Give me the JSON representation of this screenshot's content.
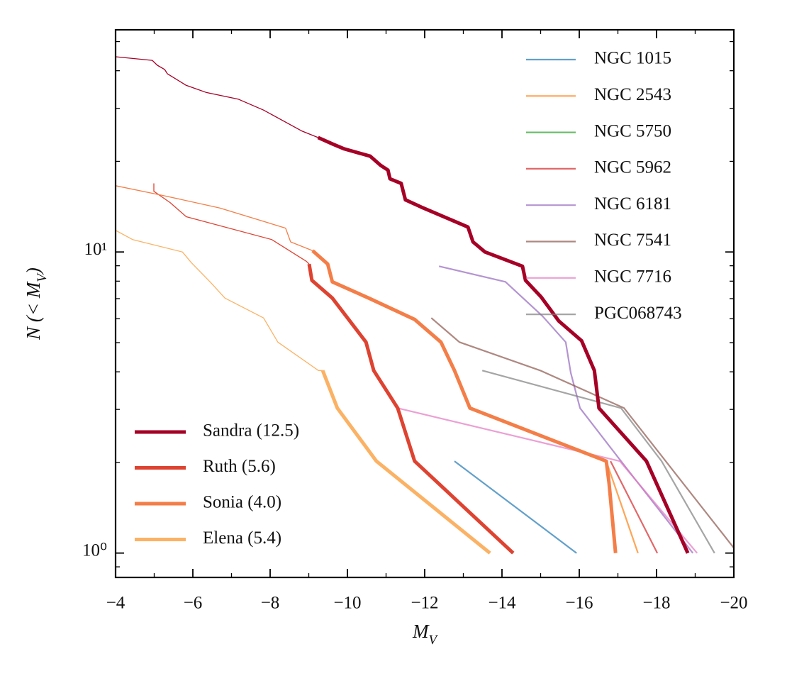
{
  "chart_data": {
    "type": "line",
    "xlabel": "M_V",
    "ylabel": "N (< M_V)",
    "xlim": [
      -4,
      -20
    ],
    "ylim": [
      0.83,
      54.7
    ],
    "yscale": "log",
    "xticks": [
      {
        "value": -4,
        "label": "−4"
      },
      {
        "value": -6,
        "label": "−6"
      },
      {
        "value": -8,
        "label": "−8"
      },
      {
        "value": -10,
        "label": "−10"
      },
      {
        "value": -12,
        "label": "−12"
      },
      {
        "value": -14,
        "label": "−14"
      },
      {
        "value": -16,
        "label": "−16"
      },
      {
        "value": -18,
        "label": "−18"
      },
      {
        "value": -20,
        "label": "−20"
      }
    ],
    "xminorticks": [
      -5,
      -7,
      -9,
      -11,
      -13,
      -15,
      -17,
      -19
    ],
    "yticks": [
      {
        "value": 1,
        "label": "10⁰"
      },
      {
        "value": 10,
        "label": "10¹"
      }
    ],
    "yminorticks": [
      0.9,
      2,
      3,
      4,
      5,
      6,
      7,
      8,
      9,
      20,
      30,
      40,
      50
    ],
    "series": [
      {
        "name": "Sandra (12.5)",
        "color": "#a50026",
        "alpha": 1,
        "legend": "lower left",
        "segments": [
          {
            "linewidth": 1.3,
            "x": [
              -4,
              -4.95,
              -5.08,
              -5.27,
              -5.34,
              -5.82,
              -6.34,
              -7.17,
              -7.83,
              -8.83,
              -9.24
            ],
            "values": [
              44.5,
              43.3,
              41.7,
              40.4,
              39.1,
              35.8,
              33.9,
              32.2,
              29.6,
              25.2,
              24.0
            ]
          },
          {
            "linewidth": 5,
            "x": [
              -9.24,
              -9.63,
              -9.92,
              -10.59,
              -10.86,
              -11.05,
              -11.1,
              -11.39,
              -11.5,
              -11.91,
              -13.12,
              -13.25,
              -13.56,
              -14.53,
              -14.61,
              -15.01,
              -15.47,
              -16.06,
              -16.39,
              -16.51,
              -17.74,
              -18.81
            ],
            "values": [
              24.0,
              22.8,
              22.0,
              20.8,
              19.4,
              18.7,
              17.5,
              16.9,
              14.9,
              14.1,
              12.1,
              10.8,
              10,
              8.97,
              8.05,
              7.1,
              5.9,
              5.07,
              4.04,
              3.03,
              2.02,
              1.0
            ]
          }
        ]
      },
      {
        "name": "Ruth (5.6)",
        "color": "#de4331",
        "alpha": 1,
        "legend": "lower left",
        "segments": [
          {
            "linewidth": 1.3,
            "x": [
              -4.99,
              -4.99,
              -5.41,
              -5.83,
              -8.04,
              -8.94,
              -9.01
            ],
            "values": [
              16.9,
              15.9,
              14.6,
              13.1,
              11.0,
              9.31,
              9.12
            ]
          },
          {
            "linewidth": 5,
            "x": [
              -9.01,
              -9.08,
              -9.61,
              -10.48,
              -10.68,
              -11.3,
              -11.74,
              -14.29
            ],
            "values": [
              9.12,
              8.05,
              7.03,
              5.02,
              4.04,
              3.03,
              2.02,
              1.0
            ]
          }
        ]
      },
      {
        "name": "Sonia (4.0)",
        "color": "#f47e48",
        "alpha": 1,
        "legend": "lower left",
        "segments": [
          {
            "linewidth": 1.3,
            "x": [
              -4,
              -5.23,
              -6.7,
              -8.4,
              -8.53,
              -9.1
            ],
            "values": [
              16.6,
              15.4,
              14.0,
              12.0,
              10.8,
              10.1
            ]
          },
          {
            "linewidth": 5,
            "x": [
              -9.1,
              -9.49,
              -9.61,
              -10.55,
              -11.74,
              -12.42,
              -12.77,
              -13.17,
              -16.7,
              -16.77,
              -16.94
            ],
            "values": [
              10.1,
              9.12,
              7.96,
              7.03,
              5.97,
              5.02,
              4.04,
              3.03,
              2.02,
              1.71,
              1.0
            ]
          }
        ]
      },
      {
        "name": "Elena (5.4)",
        "color": "#fbb264",
        "alpha": 1,
        "legend": "lower left",
        "segments": [
          {
            "linewidth": 1.3,
            "x": [
              -4,
              -4.44,
              -5.73,
              -5.96,
              -6.46,
              -6.83,
              -7.83,
              -8.2,
              -9.25,
              -9.36
            ],
            "values": [
              11.8,
              11.0,
              10.0,
              9.22,
              7.92,
              7.03,
              6.04,
              5.02,
              4.04,
              4.04
            ]
          },
          {
            "linewidth": 5,
            "x": [
              -9.36,
              -9.74,
              -10.75,
              -13.69
            ],
            "values": [
              4.04,
              3.03,
              2.02,
              1.0
            ]
          }
        ]
      },
      {
        "name": "NGC 1015",
        "color": "#1f77b4",
        "alpha": 0.7,
        "legend": "upper right",
        "segments": [
          {
            "linewidth": 2.2,
            "x": [
              -12.77,
              -15.93
            ],
            "values": [
              2.02,
              1.0
            ]
          }
        ]
      },
      {
        "name": "NGC 2543",
        "color": "#ff7f0e",
        "alpha": 0.7,
        "legend": "upper right",
        "segments": [
          {
            "linewidth": 2.2,
            "x": [
              -16.7,
              -17.52
            ],
            "values": [
              2.02,
              1.0
            ]
          }
        ]
      },
      {
        "name": "NGC 5750",
        "color": "#2ca02c",
        "alpha": 0.7,
        "legend": "upper right",
        "segments": []
      },
      {
        "name": "NGC 5962",
        "color": "#d62728",
        "alpha": 0.7,
        "legend": "upper right",
        "segments": [
          {
            "linewidth": 2.2,
            "x": [
              -16.81,
              -18.02
            ],
            "values": [
              2.02,
              1.0
            ]
          }
        ]
      },
      {
        "name": "NGC 6181",
        "color": "#9467bd",
        "alpha": 0.7,
        "legend": "upper right",
        "segments": [
          {
            "linewidth": 2.2,
            "x": [
              -12.37,
              -14.09,
              -15.05,
              -15.65,
              -15.78,
              -16.02,
              -17.08,
              -18.94
            ],
            "values": [
              8.97,
              7.96,
              6.12,
              5.02,
              3.97,
              3.03,
              2.02,
              1.0
            ]
          }
        ]
      },
      {
        "name": "NGC 7541",
        "color": "#8c564b",
        "alpha": 0.7,
        "legend": "upper right",
        "segments": [
          {
            "linewidth": 2.2,
            "x": [
              -12.17,
              -12.9,
              -14.99,
              -17.16,
              -20.0
            ],
            "values": [
              6.04,
              5.02,
              4.04,
              3.03,
              1.04
            ]
          }
        ]
      },
      {
        "name": "NGC 7716",
        "color": "#e377c2",
        "alpha": 0.7,
        "legend": "upper right",
        "segments": [
          {
            "linewidth": 2.2,
            "x": [
              -11.3,
              -17.05,
              -19.05
            ],
            "values": [
              3.03,
              2.02,
              1.0
            ]
          }
        ]
      },
      {
        "name": "PGC068743",
        "color": "#7f7f7f",
        "alpha": 0.7,
        "legend": "upper right",
        "segments": [
          {
            "linewidth": 2.2,
            "x": [
              -13.49,
              -17.08,
              -18.13,
              -19.5
            ],
            "values": [
              4.04,
              3.03,
              2.02,
              1.0
            ]
          }
        ]
      }
    ]
  }
}
